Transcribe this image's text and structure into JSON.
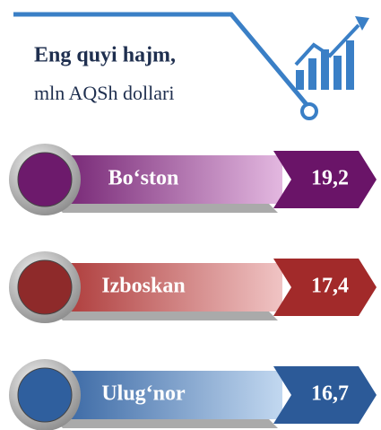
{
  "header": {
    "title": "Eng quyi hajm,",
    "subtitle": "mln AQSh dollari"
  },
  "items": [
    {
      "name": "Bo‘ston",
      "value": "19,2"
    },
    {
      "name": "Izboskan",
      "value": "17,4"
    },
    {
      "name": "Ulug‘nor",
      "value": "16,7"
    }
  ]
}
